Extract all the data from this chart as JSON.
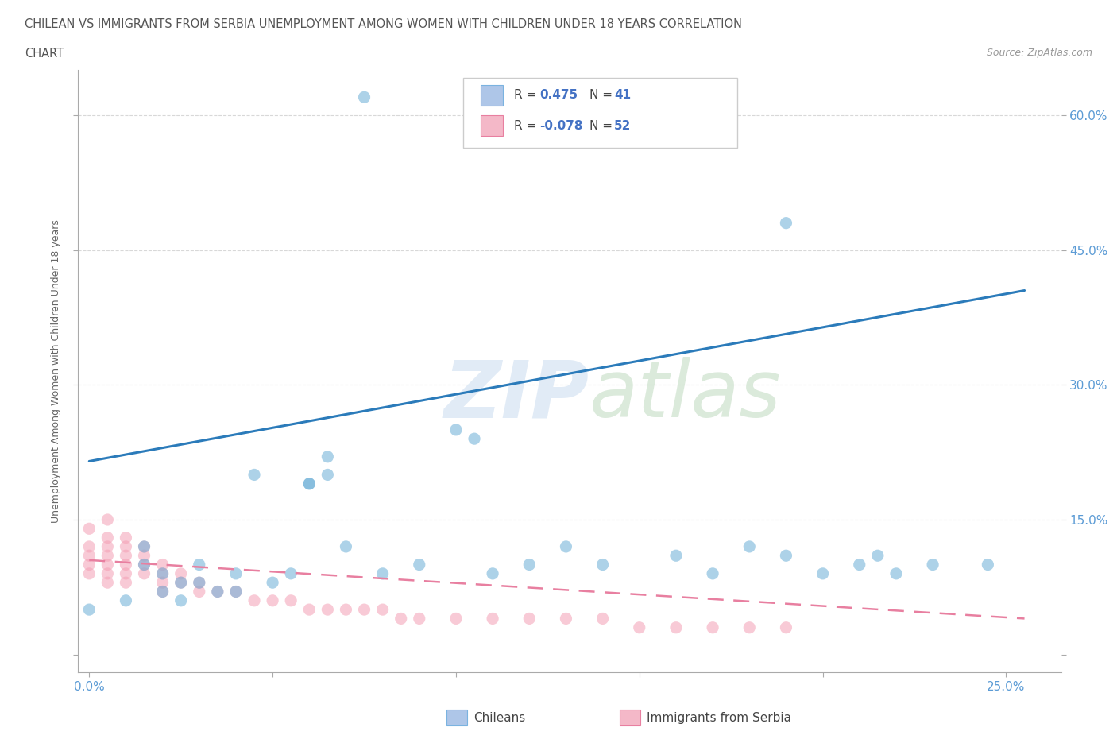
{
  "title_line1": "CHILEAN VS IMMIGRANTS FROM SERBIA UNEMPLOYMENT AMONG WOMEN WITH CHILDREN UNDER 18 YEARS CORRELATION",
  "title_line2": "CHART",
  "source": "Source: ZipAtlas.com",
  "ylabel": "Unemployment Among Women with Children Under 18 years",
  "xlim": [
    -0.003,
    0.265
  ],
  "ylim": [
    -0.02,
    0.65
  ],
  "x_tick_positions": [
    0.0,
    0.05,
    0.1,
    0.15,
    0.2,
    0.25
  ],
  "x_tick_labels": [
    "0.0%",
    "",
    "",
    "",
    "",
    "25.0%"
  ],
  "y_tick_positions": [
    0.0,
    0.15,
    0.3,
    0.45,
    0.6
  ],
  "y_tick_labels": [
    "",
    "15.0%",
    "30.0%",
    "45.0%",
    "60.0%"
  ],
  "chilean_color": "#6aaed6",
  "serbian_color": "#f4a0b5",
  "chilean_line_color": "#2b7bba",
  "serbian_line_color": "#e87fa0",
  "bg_color": "#ffffff",
  "grid_color": "#d8d8d8",
  "title_color": "#555555",
  "tick_color": "#5b9bd5",
  "ylabel_color": "#666666",
  "chilean_x": [
    0.075,
    0.0,
    0.01,
    0.015,
    0.015,
    0.02,
    0.02,
    0.025,
    0.025,
    0.03,
    0.03,
    0.035,
    0.04,
    0.04,
    0.045,
    0.05,
    0.055,
    0.06,
    0.06,
    0.065,
    0.065,
    0.07,
    0.08,
    0.09,
    0.1,
    0.105,
    0.11,
    0.12,
    0.13,
    0.14,
    0.16,
    0.17,
    0.18,
    0.19,
    0.19,
    0.2,
    0.21,
    0.215,
    0.22,
    0.23,
    0.245
  ],
  "chilean_y": [
    0.62,
    0.05,
    0.06,
    0.12,
    0.1,
    0.09,
    0.07,
    0.08,
    0.06,
    0.1,
    0.08,
    0.07,
    0.09,
    0.07,
    0.2,
    0.08,
    0.09,
    0.19,
    0.19,
    0.22,
    0.2,
    0.12,
    0.09,
    0.1,
    0.25,
    0.24,
    0.09,
    0.1,
    0.12,
    0.1,
    0.11,
    0.09,
    0.12,
    0.48,
    0.11,
    0.09,
    0.1,
    0.11,
    0.09,
    0.1,
    0.1
  ],
  "serbian_x": [
    0.0,
    0.0,
    0.0,
    0.0,
    0.0,
    0.005,
    0.005,
    0.005,
    0.005,
    0.005,
    0.005,
    0.005,
    0.01,
    0.01,
    0.01,
    0.01,
    0.01,
    0.01,
    0.015,
    0.015,
    0.015,
    0.015,
    0.02,
    0.02,
    0.02,
    0.02,
    0.025,
    0.025,
    0.03,
    0.03,
    0.035,
    0.04,
    0.045,
    0.05,
    0.055,
    0.06,
    0.065,
    0.07,
    0.075,
    0.08,
    0.085,
    0.09,
    0.1,
    0.11,
    0.12,
    0.13,
    0.14,
    0.15,
    0.16,
    0.17,
    0.18,
    0.19
  ],
  "serbian_y": [
    0.14,
    0.12,
    0.11,
    0.1,
    0.09,
    0.15,
    0.13,
    0.12,
    0.11,
    0.1,
    0.09,
    0.08,
    0.13,
    0.12,
    0.11,
    0.1,
    0.09,
    0.08,
    0.12,
    0.11,
    0.1,
    0.09,
    0.1,
    0.09,
    0.08,
    0.07,
    0.09,
    0.08,
    0.08,
    0.07,
    0.07,
    0.07,
    0.06,
    0.06,
    0.06,
    0.05,
    0.05,
    0.05,
    0.05,
    0.05,
    0.04,
    0.04,
    0.04,
    0.04,
    0.04,
    0.04,
    0.04,
    0.03,
    0.03,
    0.03,
    0.03,
    0.03
  ],
  "chilean_trend_x": [
    0.0,
    0.255
  ],
  "chilean_trend_y": [
    0.215,
    0.405
  ],
  "serbian_trend_x": [
    0.0,
    0.255
  ],
  "serbian_trend_y": [
    0.105,
    0.04
  ]
}
